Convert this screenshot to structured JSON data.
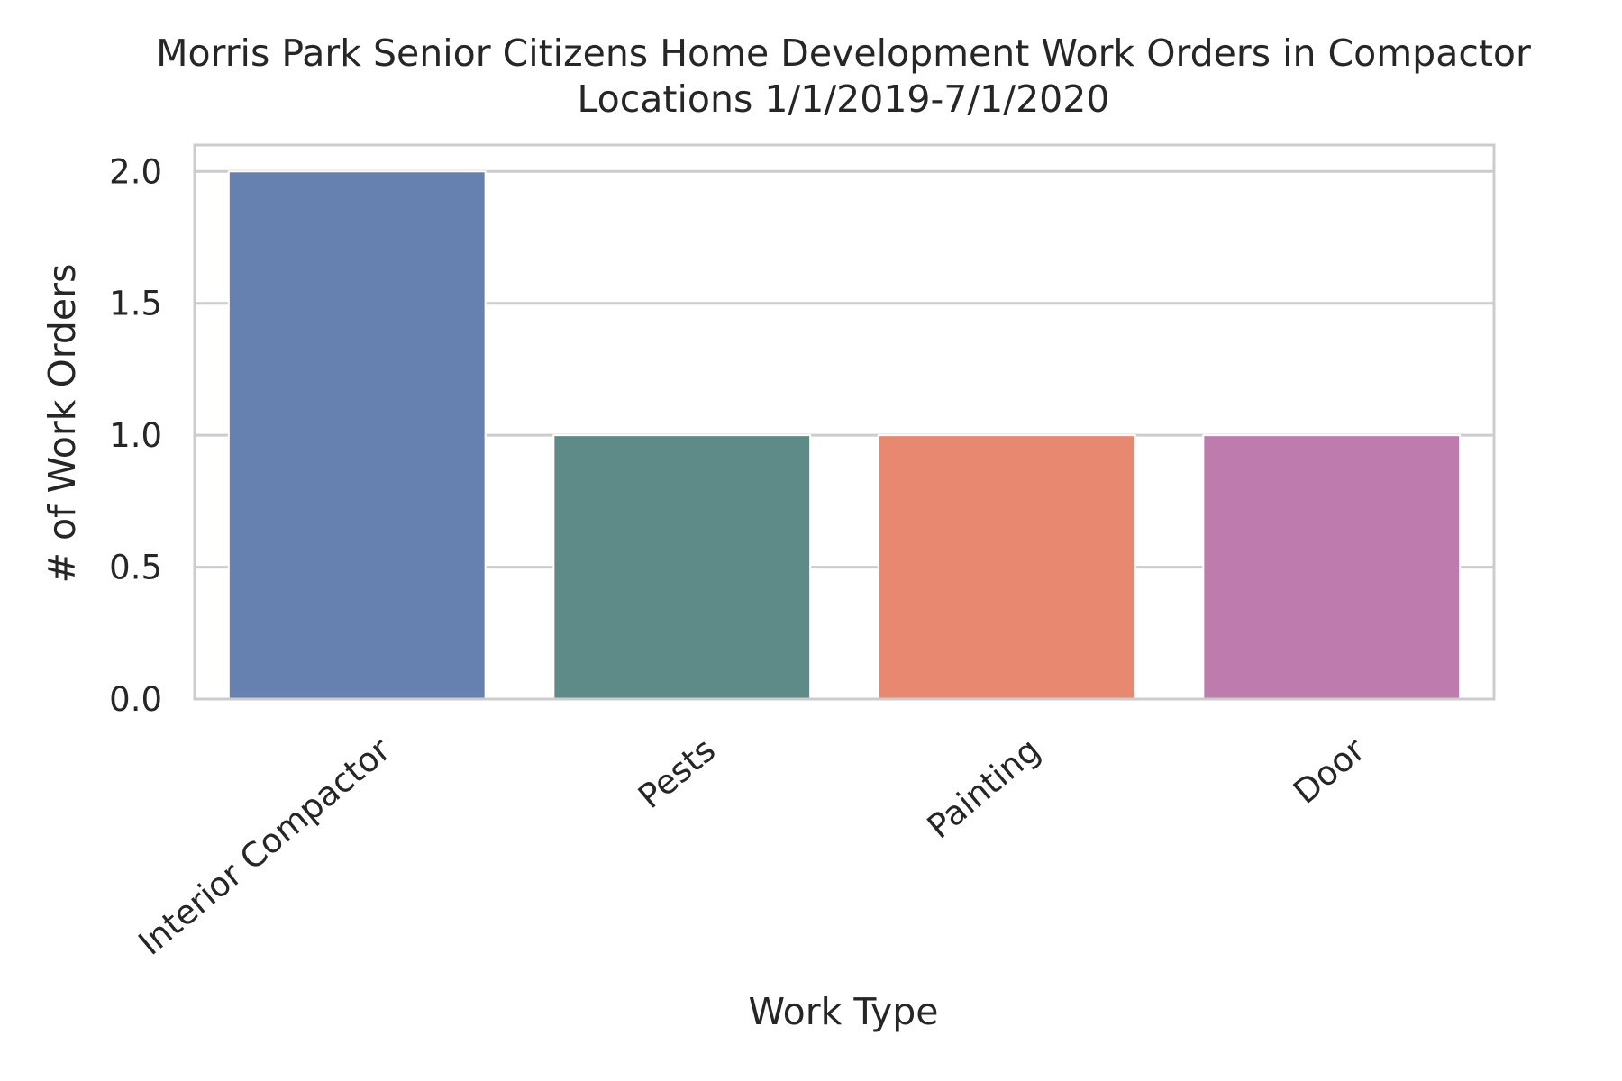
{
  "chart_data": {
    "type": "bar",
    "title": "Morris Park Senior Citizens Home Development Work Orders in Compactor Locations 1/1/2019-7/1/2020",
    "title_lines": [
      "Morris Park Senior Citizens Home Development Work Orders in Compactor",
      "Locations 1/1/2019-7/1/2020"
    ],
    "xlabel": "Work Type",
    "ylabel": "# of Work Orders",
    "categories": [
      "Interior Compactor",
      "Pests",
      "Painting",
      "Door"
    ],
    "values": [
      2,
      1,
      1,
      1
    ],
    "colors": [
      "#6681b0",
      "#5e8a87",
      "#e88870",
      "#bd7bae"
    ],
    "ylim": [
      0,
      2.1
    ],
    "yticks": [
      0.0,
      0.5,
      1.0,
      1.5,
      2.0
    ],
    "ytick_labels": [
      "0.0",
      "0.5",
      "1.0",
      "1.5",
      "2.0"
    ],
    "grid": true,
    "grid_color": "#cccccc",
    "spine_color": "#cccccc",
    "text_color": "#262626"
  }
}
